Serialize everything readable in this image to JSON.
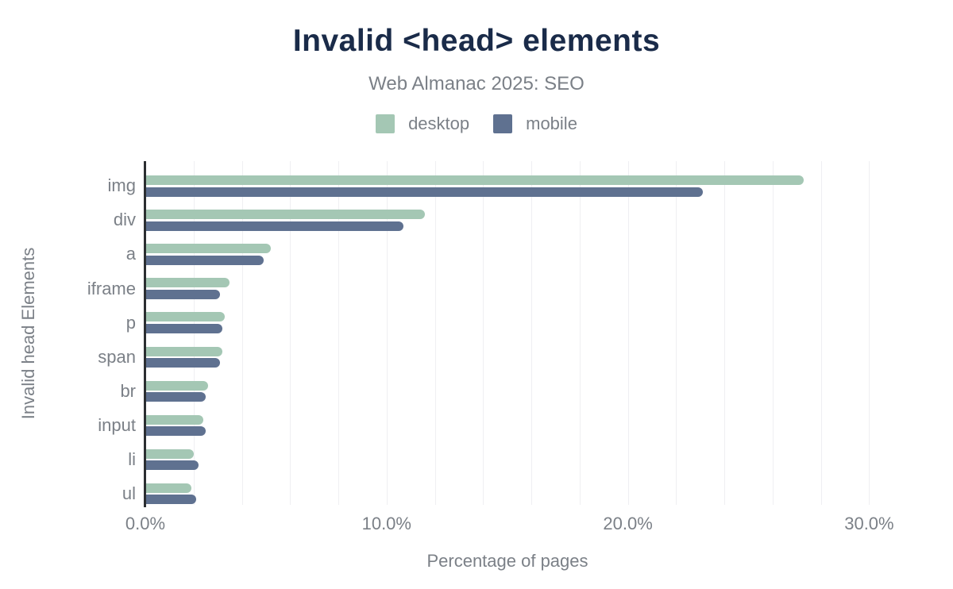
{
  "chart_data": {
    "type": "bar",
    "orientation": "horizontal",
    "title": "Invalid <head> elements",
    "subtitle": "Web Almanac 2025: SEO",
    "categories": [
      "img",
      "div",
      "a",
      "iframe",
      "p",
      "span",
      "br",
      "input",
      "li",
      "ul"
    ],
    "series": [
      {
        "name": "desktop",
        "color": "#a4c7b4",
        "values": [
          27.3,
          11.6,
          5.2,
          3.5,
          3.3,
          3.2,
          2.6,
          2.4,
          2.0,
          1.9
        ]
      },
      {
        "name": "mobile",
        "color": "#5f7190",
        "values": [
          23.1,
          10.7,
          4.9,
          3.1,
          3.2,
          3.1,
          2.5,
          2.5,
          2.2,
          2.1
        ]
      }
    ],
    "xlabel": "Percentage of pages",
    "ylabel": "Invalid head Elements",
    "xlim": [
      0,
      31.5
    ],
    "xticks": [
      {
        "value": 0,
        "label": "0.0%"
      },
      {
        "value": 10,
        "label": "10.0%"
      },
      {
        "value": 20,
        "label": "20.0%"
      },
      {
        "value": 30,
        "label": "30.0%"
      }
    ],
    "gridline_step": 2,
    "grid": true,
    "legend_position": "top"
  },
  "colors": {
    "title": "#1a2b49",
    "muted_text": "#7b8087",
    "axis_line": "#2b2e31",
    "gridline": "#efeff2",
    "background": "#ffffff"
  }
}
